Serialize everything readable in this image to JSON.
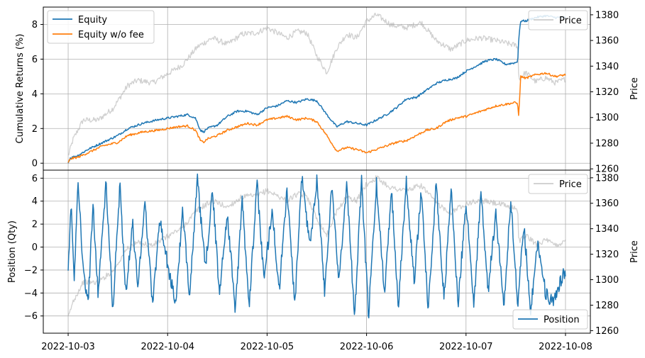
{
  "chart_data": [
    {
      "type": "line",
      "panel": "top",
      "ylabel": "Cumulative Returns (%)",
      "ylabel_right": "Price",
      "ylim": [
        -0.4,
        9.0
      ],
      "yticks": [
        0,
        2,
        4,
        6,
        8
      ],
      "ylim_right": [
        1259,
        1386
      ],
      "yticks_right": [
        1260,
        1280,
        1300,
        1320,
        1340,
        1360,
        1380
      ],
      "grid": true,
      "legend_left": {
        "placement": "upper-left",
        "entries": [
          "Equity",
          "Equity w/o fee"
        ]
      },
      "legend_right": {
        "placement": "upper-right",
        "entries": [
          "Price"
        ]
      },
      "series": [
        {
          "name": "Equity",
          "color": "#1f77b4",
          "axis": "left",
          "x": [
            0.0,
            0.02,
            0.1,
            0.2,
            0.35,
            0.5,
            0.6,
            0.75,
            0.9,
            1.0,
            1.1,
            1.2,
            1.28,
            1.33,
            1.36,
            1.4,
            1.5,
            1.6,
            1.7,
            1.8,
            1.9,
            2.0,
            2.1,
            2.2,
            2.3,
            2.4,
            2.5,
            2.6,
            2.7,
            2.8,
            2.9,
            3.0,
            3.1,
            3.2,
            3.3,
            3.4,
            3.5,
            3.6,
            3.7,
            3.8,
            3.9,
            4.0,
            4.1,
            4.2,
            4.3,
            4.4,
            4.5,
            4.52,
            4.53,
            4.55,
            4.6,
            4.7,
            4.8,
            4.9,
            5.0
          ],
          "y": [
            0.0,
            0.3,
            0.45,
            0.8,
            1.2,
            1.6,
            2.0,
            2.3,
            2.5,
            2.6,
            2.7,
            2.8,
            2.6,
            1.9,
            1.8,
            2.0,
            2.2,
            2.7,
            3.0,
            3.0,
            2.8,
            3.2,
            3.3,
            3.6,
            3.5,
            3.7,
            3.6,
            2.8,
            2.1,
            2.4,
            2.3,
            2.2,
            2.5,
            2.8,
            3.2,
            3.7,
            3.8,
            4.2,
            4.6,
            4.8,
            4.9,
            5.3,
            5.6,
            5.9,
            6.0,
            5.7,
            5.8,
            5.9,
            7.2,
            8.2,
            8.2,
            8.4,
            8.5,
            8.4,
            8.4
          ]
        },
        {
          "name": "Equity w/o fee",
          "color": "#ff7f0e",
          "axis": "left",
          "x": [
            0.0,
            0.02,
            0.1,
            0.2,
            0.35,
            0.5,
            0.6,
            0.75,
            0.9,
            1.0,
            1.1,
            1.2,
            1.28,
            1.33,
            1.36,
            1.4,
            1.5,
            1.6,
            1.7,
            1.8,
            1.9,
            2.0,
            2.1,
            2.2,
            2.3,
            2.4,
            2.5,
            2.6,
            2.7,
            2.8,
            2.9,
            3.0,
            3.1,
            3.2,
            3.3,
            3.4,
            3.5,
            3.6,
            3.7,
            3.8,
            3.9,
            4.0,
            4.1,
            4.2,
            4.3,
            4.4,
            4.5,
            4.52,
            4.53,
            4.55,
            4.6,
            4.7,
            4.8,
            4.9,
            5.0
          ],
          "y": [
            0.0,
            0.25,
            0.35,
            0.6,
            1.0,
            1.2,
            1.6,
            1.8,
            1.9,
            2.0,
            2.1,
            2.15,
            1.9,
            1.3,
            1.2,
            1.4,
            1.6,
            1.9,
            2.1,
            2.3,
            2.2,
            2.5,
            2.6,
            2.7,
            2.5,
            2.6,
            2.4,
            1.6,
            0.7,
            0.9,
            0.8,
            0.6,
            0.8,
            1.0,
            1.2,
            1.3,
            1.6,
            1.9,
            2.0,
            2.4,
            2.6,
            2.7,
            2.9,
            3.1,
            3.3,
            3.4,
            3.5,
            3.4,
            2.7,
            5.0,
            4.9,
            5.1,
            5.2,
            5.0,
            5.1
          ]
        },
        {
          "name": "Price",
          "color": "#a9a9a9",
          "axis": "right",
          "x": [
            0.0,
            0.05,
            0.15,
            0.3,
            0.45,
            0.6,
            0.7,
            0.85,
            1.0,
            1.15,
            1.3,
            1.45,
            1.6,
            1.75,
            1.9,
            2.0,
            2.1,
            2.2,
            2.3,
            2.4,
            2.5,
            2.6,
            2.7,
            2.8,
            2.9,
            3.0,
            3.1,
            3.25,
            3.4,
            3.55,
            3.7,
            3.85,
            4.0,
            4.15,
            4.3,
            4.45,
            4.52,
            4.53,
            4.6,
            4.7,
            4.8,
            4.9,
            5.0
          ],
          "y": [
            1270,
            1283,
            1298,
            1298,
            1307,
            1325,
            1329,
            1327,
            1334,
            1341,
            1355,
            1362,
            1357,
            1365,
            1366,
            1370,
            1366,
            1362,
            1367,
            1366,
            1348,
            1335,
            1354,
            1365,
            1362,
            1375,
            1380,
            1372,
            1370,
            1374,
            1360,
            1353,
            1360,
            1362,
            1360,
            1357,
            1356,
            1330,
            1335,
            1328,
            1331,
            1327,
            1330
          ]
        }
      ]
    },
    {
      "type": "line",
      "panel": "bottom",
      "ylabel": "Position (Qty)",
      "ylabel_right": "Price",
      "ylim": [
        -7.5,
        6.7
      ],
      "yticks": [
        -6,
        -4,
        -2,
        0,
        2,
        4,
        6
      ],
      "ylim_right": [
        1258,
        1386
      ],
      "yticks_right": [
        1260,
        1280,
        1300,
        1320,
        1340,
        1360,
        1380
      ],
      "grid": true,
      "legend_left": {
        "placement": "lower-right",
        "entries": [
          "Position"
        ]
      },
      "legend_right": {
        "placement": "upper-right",
        "entries": [
          "Price"
        ]
      },
      "xlim": [
        -0.25,
        5.25
      ],
      "xticks": [
        "2022-10-03",
        "2022-10-04",
        "2022-10-05",
        "2022-10-06",
        "2022-10-07",
        "2022-10-08"
      ],
      "series": [
        {
          "name": "Position",
          "color": "#1f77b4",
          "axis": "left",
          "x": [
            0.0,
            0.03,
            0.06,
            0.1,
            0.15,
            0.2,
            0.25,
            0.3,
            0.38,
            0.45,
            0.52,
            0.58,
            0.65,
            0.7,
            0.77,
            0.85,
            0.92,
            1.0,
            1.08,
            1.15,
            1.22,
            1.3,
            1.38,
            1.45,
            1.52,
            1.6,
            1.68,
            1.75,
            1.82,
            1.9,
            1.97,
            2.05,
            2.12,
            2.2,
            2.28,
            2.35,
            2.43,
            2.5,
            2.58,
            2.65,
            2.72,
            2.8,
            2.88,
            2.95,
            3.02,
            3.1,
            3.18,
            3.25,
            3.32,
            3.4,
            3.48,
            3.55,
            3.62,
            3.7,
            3.78,
            3.85,
            3.92,
            4.0,
            4.08,
            4.15,
            4.22,
            4.3,
            4.38,
            4.45,
            4.52,
            4.58,
            4.65,
            4.72,
            4.8,
            4.88,
            4.95,
            5.0
          ],
          "y": [
            -2.0,
            4.3,
            -3.0,
            6.0,
            -2.0,
            -5.0,
            3.8,
            -4.0,
            5.5,
            -5.5,
            5.5,
            -4.0,
            2.0,
            -3.5,
            4.0,
            -5.0,
            2.5,
            -1.5,
            -5.0,
            3.0,
            -4.0,
            5.8,
            -2.0,
            5.0,
            -4.0,
            3.0,
            -5.5,
            4.0,
            -5.0,
            5.5,
            -3.0,
            3.5,
            -4.0,
            5.0,
            -5.0,
            6.2,
            0.0,
            6.0,
            -4.0,
            5.5,
            -3.0,
            5.5,
            -6.0,
            5.8,
            -6.0,
            5.5,
            -4.0,
            5.0,
            -5.0,
            5.8,
            -3.0,
            5.0,
            -5.5,
            5.5,
            -4.5,
            5.0,
            -5.0,
            4.0,
            -5.0,
            5.0,
            -4.0,
            3.0,
            -5.0,
            4.0,
            -5.0,
            2.0,
            -5.5,
            0.5,
            -4.0,
            -5.0,
            -3.0,
            -2.0
          ]
        },
        {
          "name": "Price",
          "color": "#a9a9a9",
          "axis": "right",
          "x": [
            0.0,
            0.05,
            0.15,
            0.3,
            0.45,
            0.6,
            0.7,
            0.85,
            1.0,
            1.15,
            1.3,
            1.45,
            1.6,
            1.75,
            1.9,
            2.0,
            2.1,
            2.2,
            2.3,
            2.4,
            2.5,
            2.6,
            2.7,
            2.8,
            2.9,
            3.0,
            3.1,
            3.25,
            3.4,
            3.55,
            3.7,
            3.85,
            4.0,
            4.15,
            4.3,
            4.45,
            4.52,
            4.53,
            4.6,
            4.7,
            4.8,
            4.9,
            5.0
          ],
          "y": [
            1270,
            1283,
            1298,
            1298,
            1307,
            1325,
            1329,
            1327,
            1334,
            1341,
            1355,
            1362,
            1357,
            1365,
            1366,
            1370,
            1366,
            1362,
            1367,
            1366,
            1348,
            1335,
            1354,
            1365,
            1362,
            1375,
            1380,
            1372,
            1370,
            1374,
            1360,
            1353,
            1360,
            1362,
            1360,
            1357,
            1356,
            1330,
            1335,
            1328,
            1331,
            1327,
            1330
          ]
        }
      ]
    }
  ]
}
